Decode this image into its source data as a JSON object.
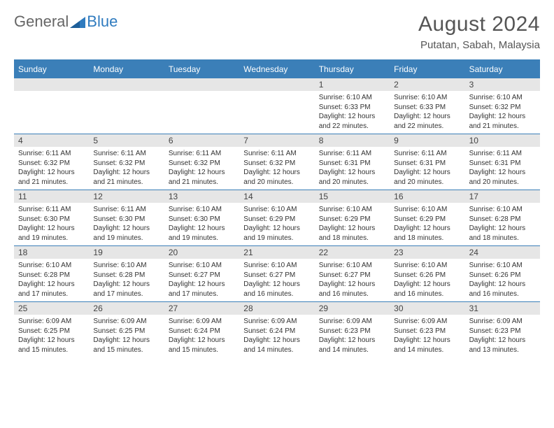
{
  "logo": {
    "general": "General",
    "blue": "Blue"
  },
  "title": "August 2024",
  "location": "Putatan, Sabah, Malaysia",
  "header_color": "#3b7fb8",
  "daynum_bg": "#e6e6e6",
  "text_color": "#333333",
  "day_headers": [
    "Sunday",
    "Monday",
    "Tuesday",
    "Wednesday",
    "Thursday",
    "Friday",
    "Saturday"
  ],
  "weeks": [
    [
      null,
      null,
      null,
      null,
      {
        "n": "1",
        "sun": "Sunrise: 6:10 AM",
        "set": "Sunset: 6:33 PM",
        "day": "Daylight: 12 hours and 22 minutes."
      },
      {
        "n": "2",
        "sun": "Sunrise: 6:10 AM",
        "set": "Sunset: 6:33 PM",
        "day": "Daylight: 12 hours and 22 minutes."
      },
      {
        "n": "3",
        "sun": "Sunrise: 6:10 AM",
        "set": "Sunset: 6:32 PM",
        "day": "Daylight: 12 hours and 21 minutes."
      }
    ],
    [
      {
        "n": "4",
        "sun": "Sunrise: 6:11 AM",
        "set": "Sunset: 6:32 PM",
        "day": "Daylight: 12 hours and 21 minutes."
      },
      {
        "n": "5",
        "sun": "Sunrise: 6:11 AM",
        "set": "Sunset: 6:32 PM",
        "day": "Daylight: 12 hours and 21 minutes."
      },
      {
        "n": "6",
        "sun": "Sunrise: 6:11 AM",
        "set": "Sunset: 6:32 PM",
        "day": "Daylight: 12 hours and 21 minutes."
      },
      {
        "n": "7",
        "sun": "Sunrise: 6:11 AM",
        "set": "Sunset: 6:32 PM",
        "day": "Daylight: 12 hours and 20 minutes."
      },
      {
        "n": "8",
        "sun": "Sunrise: 6:11 AM",
        "set": "Sunset: 6:31 PM",
        "day": "Daylight: 12 hours and 20 minutes."
      },
      {
        "n": "9",
        "sun": "Sunrise: 6:11 AM",
        "set": "Sunset: 6:31 PM",
        "day": "Daylight: 12 hours and 20 minutes."
      },
      {
        "n": "10",
        "sun": "Sunrise: 6:11 AM",
        "set": "Sunset: 6:31 PM",
        "day": "Daylight: 12 hours and 20 minutes."
      }
    ],
    [
      {
        "n": "11",
        "sun": "Sunrise: 6:11 AM",
        "set": "Sunset: 6:30 PM",
        "day": "Daylight: 12 hours and 19 minutes."
      },
      {
        "n": "12",
        "sun": "Sunrise: 6:11 AM",
        "set": "Sunset: 6:30 PM",
        "day": "Daylight: 12 hours and 19 minutes."
      },
      {
        "n": "13",
        "sun": "Sunrise: 6:10 AM",
        "set": "Sunset: 6:30 PM",
        "day": "Daylight: 12 hours and 19 minutes."
      },
      {
        "n": "14",
        "sun": "Sunrise: 6:10 AM",
        "set": "Sunset: 6:29 PM",
        "day": "Daylight: 12 hours and 19 minutes."
      },
      {
        "n": "15",
        "sun": "Sunrise: 6:10 AM",
        "set": "Sunset: 6:29 PM",
        "day": "Daylight: 12 hours and 18 minutes."
      },
      {
        "n": "16",
        "sun": "Sunrise: 6:10 AM",
        "set": "Sunset: 6:29 PM",
        "day": "Daylight: 12 hours and 18 minutes."
      },
      {
        "n": "17",
        "sun": "Sunrise: 6:10 AM",
        "set": "Sunset: 6:28 PM",
        "day": "Daylight: 12 hours and 18 minutes."
      }
    ],
    [
      {
        "n": "18",
        "sun": "Sunrise: 6:10 AM",
        "set": "Sunset: 6:28 PM",
        "day": "Daylight: 12 hours and 17 minutes."
      },
      {
        "n": "19",
        "sun": "Sunrise: 6:10 AM",
        "set": "Sunset: 6:28 PM",
        "day": "Daylight: 12 hours and 17 minutes."
      },
      {
        "n": "20",
        "sun": "Sunrise: 6:10 AM",
        "set": "Sunset: 6:27 PM",
        "day": "Daylight: 12 hours and 17 minutes."
      },
      {
        "n": "21",
        "sun": "Sunrise: 6:10 AM",
        "set": "Sunset: 6:27 PM",
        "day": "Daylight: 12 hours and 16 minutes."
      },
      {
        "n": "22",
        "sun": "Sunrise: 6:10 AM",
        "set": "Sunset: 6:27 PM",
        "day": "Daylight: 12 hours and 16 minutes."
      },
      {
        "n": "23",
        "sun": "Sunrise: 6:10 AM",
        "set": "Sunset: 6:26 PM",
        "day": "Daylight: 12 hours and 16 minutes."
      },
      {
        "n": "24",
        "sun": "Sunrise: 6:10 AM",
        "set": "Sunset: 6:26 PM",
        "day": "Daylight: 12 hours and 16 minutes."
      }
    ],
    [
      {
        "n": "25",
        "sun": "Sunrise: 6:09 AM",
        "set": "Sunset: 6:25 PM",
        "day": "Daylight: 12 hours and 15 minutes."
      },
      {
        "n": "26",
        "sun": "Sunrise: 6:09 AM",
        "set": "Sunset: 6:25 PM",
        "day": "Daylight: 12 hours and 15 minutes."
      },
      {
        "n": "27",
        "sun": "Sunrise: 6:09 AM",
        "set": "Sunset: 6:24 PM",
        "day": "Daylight: 12 hours and 15 minutes."
      },
      {
        "n": "28",
        "sun": "Sunrise: 6:09 AM",
        "set": "Sunset: 6:24 PM",
        "day": "Daylight: 12 hours and 14 minutes."
      },
      {
        "n": "29",
        "sun": "Sunrise: 6:09 AM",
        "set": "Sunset: 6:23 PM",
        "day": "Daylight: 12 hours and 14 minutes."
      },
      {
        "n": "30",
        "sun": "Sunrise: 6:09 AM",
        "set": "Sunset: 6:23 PM",
        "day": "Daylight: 12 hours and 14 minutes."
      },
      {
        "n": "31",
        "sun": "Sunrise: 6:09 AM",
        "set": "Sunset: 6:23 PM",
        "day": "Daylight: 12 hours and 13 minutes."
      }
    ]
  ]
}
